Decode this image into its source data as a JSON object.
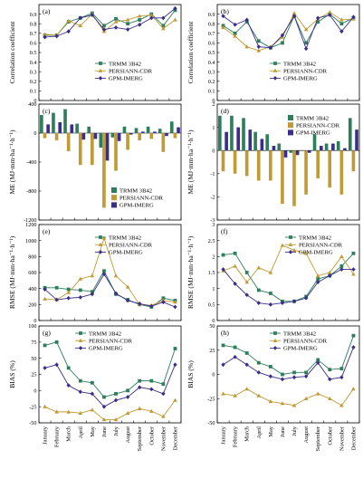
{
  "colors": {
    "trmm": "#2e7d5b",
    "persiann": "#c09a35",
    "gpm": "#3b2d8a"
  },
  "months": [
    "January",
    "February",
    "March",
    "April",
    "May",
    "June",
    "July",
    "August",
    "September",
    "October",
    "November",
    "December"
  ],
  "chart_data": [
    {
      "id": "a",
      "panel_label": "(a)",
      "type": "line",
      "ylabel": "Correlation coefficient",
      "ylim": [
        0,
        1.0
      ],
      "yticks": [
        0,
        0.1,
        0.2,
        0.3,
        0.4,
        0.5,
        0.6,
        0.7,
        0.8,
        0.9
      ],
      "ytick_labels": [
        "0",
        "0.1",
        "0.2",
        "0.3",
        "0.4",
        "0.5",
        "0.6",
        "0.7",
        "0.8",
        "0.9"
      ],
      "series": [
        {
          "key": "trmm",
          "name": "TRMM 3B42",
          "values": [
            0.68,
            0.68,
            0.82,
            0.86,
            0.91,
            0.78,
            0.85,
            0.8,
            0.84,
            0.9,
            0.78,
            0.94
          ]
        },
        {
          "key": "persiann",
          "name": "PERSIANN-CDR",
          "values": [
            0.69,
            0.68,
            0.83,
            0.78,
            0.9,
            0.72,
            0.82,
            0.84,
            0.88,
            0.89,
            0.75,
            0.84
          ]
        },
        {
          "key": "gpm",
          "name": "GPM-IMERG",
          "values": [
            0.66,
            0.67,
            0.72,
            0.86,
            0.89,
            0.74,
            0.76,
            0.74,
            0.79,
            0.86,
            0.86,
            0.96
          ]
        }
      ]
    },
    {
      "id": "b",
      "panel_label": "(b)",
      "type": "line",
      "ylabel": "Correlation coefficient",
      "ylim": [
        0,
        1.0
      ],
      "yticks": [
        0,
        0.1,
        0.2,
        0.3,
        0.4,
        0.5,
        0.6,
        0.7,
        0.8,
        0.9
      ],
      "ytick_labels": [
        "0",
        "0.1",
        "0.2",
        "0.3",
        "0.4",
        "0.5",
        "0.6",
        "0.7",
        "0.8",
        "0.9"
      ],
      "series": [
        {
          "key": "trmm",
          "name": "TRMM 3B42",
          "values": [
            0.78,
            0.7,
            0.82,
            0.62,
            0.55,
            0.6,
            0.88,
            0.6,
            0.82,
            0.9,
            0.8,
            0.86
          ]
        },
        {
          "key": "persiann",
          "name": "PERSIANN-CDR",
          "values": [
            0.76,
            0.67,
            0.56,
            0.52,
            0.56,
            0.66,
            0.91,
            0.74,
            0.85,
            0.92,
            0.84,
            0.85
          ]
        },
        {
          "key": "gpm",
          "name": "GPM-IMERG",
          "values": [
            0.88,
            0.79,
            0.84,
            0.56,
            0.55,
            0.68,
            0.88,
            0.54,
            0.86,
            0.89,
            0.72,
            0.87
          ]
        }
      ]
    },
    {
      "id": "c",
      "panel_label": "(c)",
      "type": "bar",
      "ylabel": "ME (MJ·mm·ha⁻¹·h⁻¹)",
      "ylim": [
        -1200,
        400
      ],
      "yticks": [
        -1200,
        -800,
        -400,
        0,
        400
      ],
      "ytick_labels": [
        "-1200",
        "-800",
        "-400",
        "0",
        "400"
      ],
      "series": [
        {
          "key": "trmm",
          "name": "TRMM 3B42",
          "values": [
            250,
            280,
            330,
            130,
            90,
            -200,
            -60,
            90,
            70,
            90,
            60,
            160
          ]
        },
        {
          "key": "persiann",
          "name": "PERSIANN-CDR",
          "values": [
            -70,
            -100,
            -250,
            -440,
            -440,
            -1030,
            -520,
            -230,
            -100,
            -80,
            -260,
            -70
          ]
        },
        {
          "key": "gpm",
          "name": "GPM-IMERG",
          "values": [
            120,
            150,
            120,
            -90,
            -80,
            -380,
            -110,
            -20,
            20,
            20,
            -40,
            80
          ]
        }
      ]
    },
    {
      "id": "d",
      "panel_label": "(d)",
      "type": "bar",
      "ylabel": "ME (MJ·mm·ha⁻¹·h⁻¹)",
      "ylim": [
        -3,
        2
      ],
      "yticks": [
        -3,
        -2,
        -1,
        0,
        1,
        2
      ],
      "ytick_labels": [
        "-3",
        "-2",
        "-1",
        "0",
        "1",
        "2"
      ],
      "series": [
        {
          "key": "trmm",
          "name": "TRMM 3B42",
          "values": [
            1.5,
            1.5,
            1.4,
            0.8,
            0.7,
            0.3,
            -0.1,
            0.0,
            0.7,
            0.3,
            0.4,
            1.4
          ]
        },
        {
          "key": "persiann",
          "name": "PERSIANN-CDR",
          "values": [
            -0.9,
            -1.0,
            -1.1,
            -1.3,
            -1.3,
            -2.3,
            -2.4,
            -1.9,
            -1.2,
            -1.6,
            -1.9,
            -0.9
          ]
        },
        {
          "key": "gpm",
          "name": "GPM-IMERG",
          "values": [
            0.8,
            1.0,
            0.9,
            0.5,
            0.2,
            -0.3,
            -0.2,
            -0.1,
            0.2,
            0.3,
            0.1,
            0.9
          ]
        }
      ]
    },
    {
      "id": "e",
      "panel_label": "(e)",
      "type": "line",
      "ylabel": "RMSE (MJ·mm·ha⁻¹·h⁻¹)",
      "ylim": [
        0,
        1200
      ],
      "yticks": [
        0,
        200,
        400,
        600,
        800,
        1000,
        1200
      ],
      "ytick_labels": [
        "0",
        "200",
        "400",
        "600",
        "800",
        "1000",
        "1200"
      ],
      "series": [
        {
          "key": "trmm",
          "name": "TRMM 3B42",
          "values": [
            410,
            410,
            390,
            380,
            360,
            620,
            330,
            260,
            200,
            170,
            280,
            250
          ]
        },
        {
          "key": "persiann",
          "name": "PERSIANN-CDR",
          "values": [
            270,
            260,
            350,
            520,
            560,
            1030,
            560,
            420,
            200,
            190,
            250,
            230
          ]
        },
        {
          "key": "gpm",
          "name": "GPM-IMERG",
          "values": [
            390,
            260,
            280,
            290,
            330,
            580,
            340,
            250,
            210,
            180,
            230,
            170
          ]
        }
      ]
    },
    {
      "id": "f",
      "panel_label": "(f)",
      "type": "line",
      "ylabel": "RMSE (MJ·mm·ha⁻¹·h⁻¹)",
      "ylim": [
        0,
        3
      ],
      "yticks": [
        0,
        0.5,
        1.0,
        1.5,
        2.0,
        2.5,
        3.0
      ],
      "ytick_labels": [
        "0",
        "0.5",
        "1",
        "1.5",
        "2",
        "2.5",
        "3"
      ],
      "series": [
        {
          "key": "trmm",
          "name": "TRMM 3B42",
          "values": [
            2.05,
            2.1,
            1.5,
            0.95,
            0.85,
            0.6,
            0.6,
            0.75,
            1.3,
            1.4,
            1.7,
            2.1
          ]
        },
        {
          "key": "persiann",
          "name": "PERSIANN-CDR",
          "values": [
            1.55,
            1.7,
            1.2,
            1.65,
            1.5,
            2.35,
            2.2,
            2.1,
            1.4,
            1.5,
            2.0,
            1.45
          ]
        },
        {
          "key": "gpm",
          "name": "GPM-IMERG",
          "values": [
            1.6,
            1.15,
            0.8,
            0.55,
            0.5,
            0.55,
            0.6,
            0.7,
            1.2,
            1.4,
            1.6,
            1.6
          ]
        }
      ]
    },
    {
      "id": "g",
      "panel_label": "(g)",
      "type": "line",
      "ylabel": "BIAS (%)",
      "ylim": [
        -50,
        100
      ],
      "yticks": [
        -50,
        -25,
        0,
        25,
        50,
        75,
        100
      ],
      "ytick_labels": [
        "-50",
        "-25",
        "0",
        "25",
        "50",
        "75",
        "100"
      ],
      "series": [
        {
          "key": "trmm",
          "name": "TRMM 3B42",
          "values": [
            70,
            75,
            35,
            15,
            12,
            -10,
            -5,
            0,
            15,
            15,
            10,
            65
          ]
        },
        {
          "key": "persiann",
          "name": "PERSIANN-CDR",
          "values": [
            -25,
            -33,
            -33,
            -35,
            -30,
            -45,
            -45,
            -35,
            -28,
            -32,
            -40,
            -15
          ]
        },
        {
          "key": "gpm",
          "name": "GPM-IMERG",
          "values": [
            35,
            40,
            8,
            -2,
            -5,
            -25,
            -15,
            -10,
            5,
            2,
            -5,
            40
          ]
        }
      ]
    },
    {
      "id": "h",
      "panel_label": "(h)",
      "type": "line",
      "ylabel": "BIAS (%)",
      "ylim": [
        -50,
        50
      ],
      "yticks": [
        -50,
        -25,
        0,
        25,
        50
      ],
      "ytick_labels": [
        "-50",
        "-25",
        "0",
        "25",
        "50"
      ],
      "series": [
        {
          "key": "trmm",
          "name": "TRMM 3B42",
          "values": [
            30,
            28,
            22,
            12,
            8,
            0,
            2,
            2,
            15,
            5,
            6,
            40
          ]
        },
        {
          "key": "persiann",
          "name": "PERSIANN-CDR",
          "values": [
            -20,
            -22,
            -15,
            -22,
            -28,
            -30,
            -32,
            -25,
            -20,
            -25,
            -32,
            -15
          ]
        },
        {
          "key": "gpm",
          "name": "GPM-IMERG",
          "values": [
            10,
            18,
            10,
            2,
            -2,
            -5,
            -3,
            -2,
            12,
            -5,
            -3,
            28
          ]
        }
      ]
    }
  ]
}
